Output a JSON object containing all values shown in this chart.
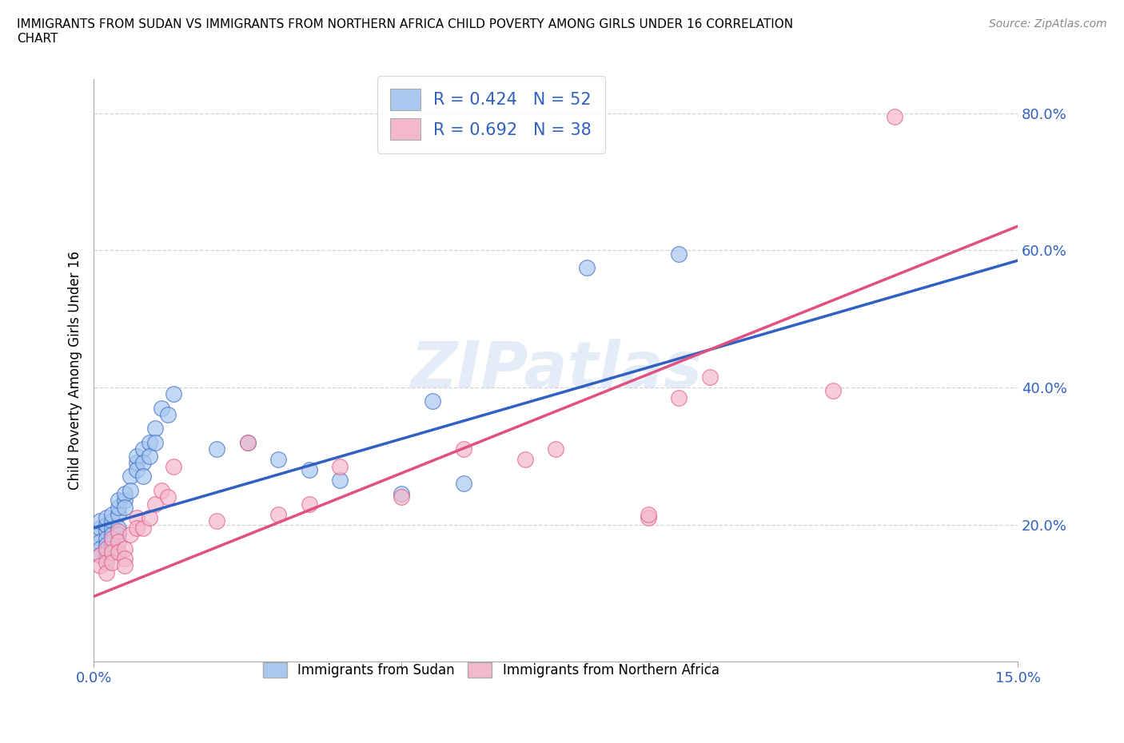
{
  "title": "IMMIGRANTS FROM SUDAN VS IMMIGRANTS FROM NORTHERN AFRICA CHILD POVERTY AMONG GIRLS UNDER 16 CORRELATION\nCHART",
  "source": "Source: ZipAtlas.com",
  "ylabel": "Child Poverty Among Girls Under 16",
  "xlim": [
    0.0,
    0.15
  ],
  "ylim": [
    0.0,
    0.85
  ],
  "x_ticks": [
    0.0,
    0.05,
    0.1,
    0.15
  ],
  "x_tick_labels": [
    "0.0%",
    "",
    "",
    "15.0%"
  ],
  "y_ticks": [
    0.2,
    0.4,
    0.6,
    0.8
  ],
  "y_tick_labels": [
    "20.0%",
    "40.0%",
    "60.0%",
    "80.0%"
  ],
  "sudan_color": "#a8c8f0",
  "northern_africa_color": "#f4b8cc",
  "sudan_line_color": "#3060c0",
  "northern_africa_line_color": "#e05080",
  "sudan_R": 0.424,
  "sudan_N": 52,
  "northern_africa_R": 0.692,
  "northern_africa_N": 38,
  "watermark": "ZIPatlas",
  "sudan_x": [
    0.001,
    0.001,
    0.001,
    0.001,
    0.001,
    0.001,
    0.002,
    0.002,
    0.002,
    0.002,
    0.002,
    0.002,
    0.002,
    0.003,
    0.003,
    0.003,
    0.003,
    0.003,
    0.003,
    0.004,
    0.004,
    0.004,
    0.004,
    0.004,
    0.005,
    0.005,
    0.005,
    0.006,
    0.006,
    0.007,
    0.007,
    0.007,
    0.008,
    0.008,
    0.008,
    0.009,
    0.009,
    0.01,
    0.01,
    0.011,
    0.012,
    0.013,
    0.02,
    0.025,
    0.03,
    0.035,
    0.04,
    0.05,
    0.055,
    0.06,
    0.08,
    0.095
  ],
  "sudan_y": [
    0.185,
    0.195,
    0.205,
    0.175,
    0.165,
    0.155,
    0.19,
    0.2,
    0.21,
    0.18,
    0.17,
    0.16,
    0.15,
    0.195,
    0.205,
    0.215,
    0.185,
    0.175,
    0.165,
    0.215,
    0.225,
    0.235,
    0.195,
    0.185,
    0.235,
    0.245,
    0.225,
    0.27,
    0.25,
    0.29,
    0.3,
    0.28,
    0.31,
    0.29,
    0.27,
    0.32,
    0.3,
    0.34,
    0.32,
    0.37,
    0.36,
    0.39,
    0.31,
    0.32,
    0.295,
    0.28,
    0.265,
    0.245,
    0.38,
    0.26,
    0.575,
    0.595
  ],
  "northern_africa_x": [
    0.001,
    0.001,
    0.002,
    0.002,
    0.002,
    0.003,
    0.003,
    0.003,
    0.004,
    0.004,
    0.004,
    0.005,
    0.005,
    0.005,
    0.006,
    0.007,
    0.007,
    0.008,
    0.009,
    0.01,
    0.011,
    0.012,
    0.013,
    0.02,
    0.025,
    0.03,
    0.035,
    0.04,
    0.05,
    0.06,
    0.07,
    0.075,
    0.09,
    0.09,
    0.095,
    0.1,
    0.12,
    0.13
  ],
  "northern_africa_y": [
    0.155,
    0.14,
    0.165,
    0.145,
    0.13,
    0.18,
    0.16,
    0.145,
    0.19,
    0.175,
    0.16,
    0.165,
    0.15,
    0.14,
    0.185,
    0.21,
    0.195,
    0.195,
    0.21,
    0.23,
    0.25,
    0.24,
    0.285,
    0.205,
    0.32,
    0.215,
    0.23,
    0.285,
    0.24,
    0.31,
    0.295,
    0.31,
    0.21,
    0.215,
    0.385,
    0.415,
    0.395,
    0.795
  ],
  "sudan_line_y0": 0.195,
  "sudan_line_y1": 0.585,
  "na_line_y0": 0.095,
  "na_line_y1": 0.635
}
